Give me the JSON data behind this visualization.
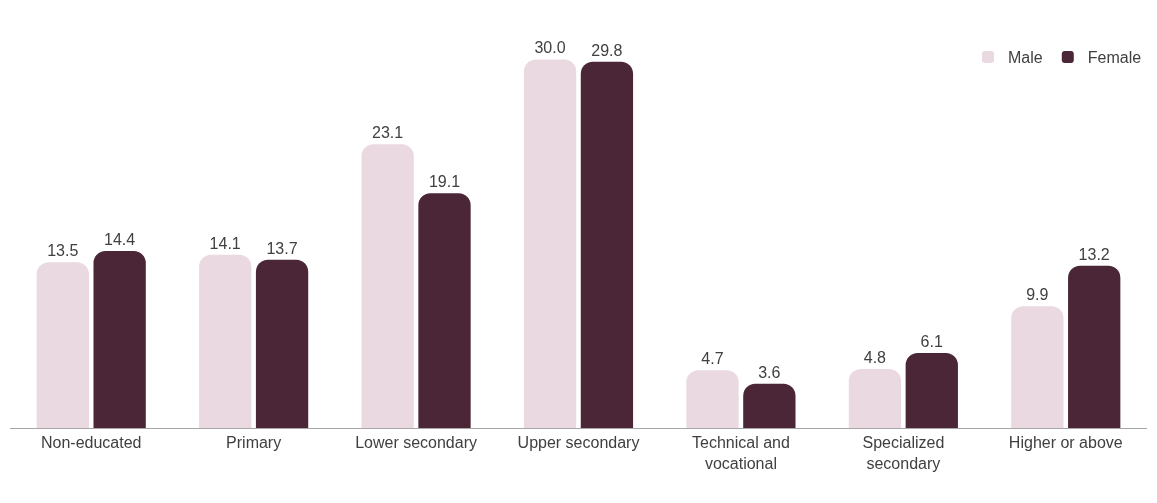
{
  "chart_data": {
    "type": "bar",
    "categories": [
      "Non-educated",
      "Primary",
      "Lower secondary",
      "Upper secondary",
      "Technical and vocational",
      "Specialized secondary",
      "Higher or above"
    ],
    "series": [
      {
        "name": "Male",
        "color": "#ead9e0",
        "values": [
          13.5,
          14.1,
          23.1,
          30.0,
          4.7,
          4.8,
          9.9
        ],
        "value_labels": [
          "13.5",
          "14.1",
          "23.1",
          "30.0",
          "4.7",
          "4.8",
          "9.9"
        ]
      },
      {
        "name": "Female",
        "color": "#4a2637",
        "values": [
          14.4,
          13.7,
          19.1,
          29.8,
          3.6,
          6.1,
          13.2
        ],
        "value_labels": [
          "14.4",
          "13.7",
          "19.1",
          "29.8",
          "3.6",
          "6.1",
          "13.2"
        ]
      }
    ],
    "legend": "top right"
  }
}
